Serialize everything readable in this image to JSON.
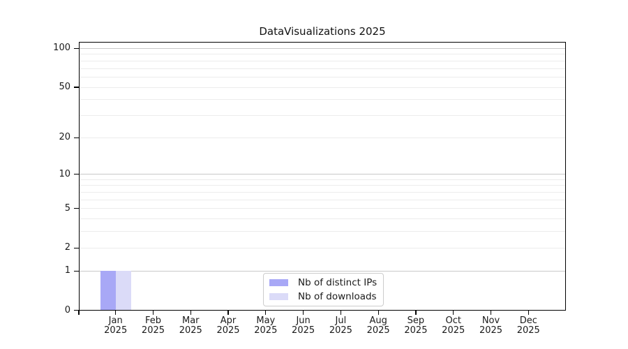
{
  "title": "DataVisualizations 2025",
  "chart_data": {
    "type": "bar",
    "title": "DataVisualizations 2025",
    "categories": [
      {
        "month": "Jan",
        "year": "2025"
      },
      {
        "month": "Feb",
        "year": "2025"
      },
      {
        "month": "Mar",
        "year": "2025"
      },
      {
        "month": "Apr",
        "year": "2025"
      },
      {
        "month": "May",
        "year": "2025"
      },
      {
        "month": "Jun",
        "year": "2025"
      },
      {
        "month": "Jul",
        "year": "2025"
      },
      {
        "month": "Aug",
        "year": "2025"
      },
      {
        "month": "Sep",
        "year": "2025"
      },
      {
        "month": "Oct",
        "year": "2025"
      },
      {
        "month": "Nov",
        "year": "2025"
      },
      {
        "month": "Dec",
        "year": "2025"
      }
    ],
    "series": [
      {
        "name": "Nb of distinct IPs",
        "color": "#a8a8f6",
        "values": [
          1,
          0,
          0,
          0,
          0,
          0,
          0,
          0,
          0,
          0,
          0,
          0
        ]
      },
      {
        "name": "Nb of downloads",
        "color": "#dbdbf8",
        "values": [
          1,
          0,
          0,
          0,
          0,
          0,
          0,
          0,
          0,
          0,
          0,
          0
        ]
      }
    ],
    "yscale": "log1p",
    "ylim": [
      0,
      112.5
    ],
    "y_tick_labels": [
      0,
      1,
      2,
      5,
      10,
      20,
      50,
      100
    ],
    "y_major_gridlines": [
      1,
      10,
      100
    ],
    "y_minor_gridlines": [
      2,
      3,
      4,
      5,
      6,
      7,
      8,
      9,
      20,
      30,
      40,
      50,
      60,
      70,
      80,
      90
    ],
    "grid": "horizontal",
    "legend_position": "lower center",
    "colors": {
      "major_grid": "#c8c8c8",
      "minor_grid": "#ececec",
      "axis": "#000000",
      "text": "#1a1a1a"
    }
  }
}
